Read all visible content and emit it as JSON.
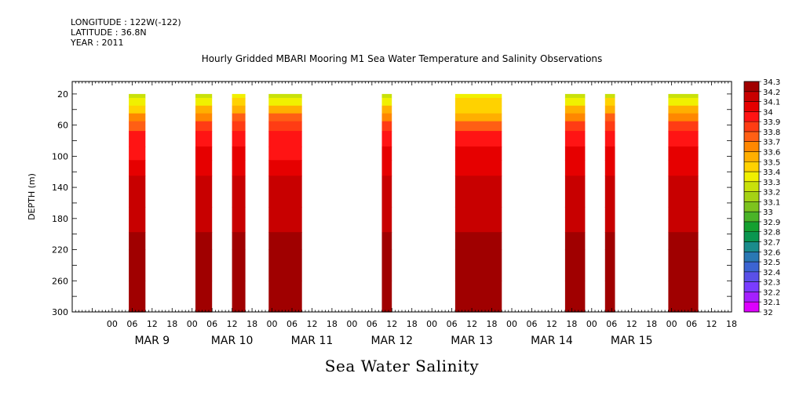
{
  "header": {
    "longitude": "LONGITUDE : 122W(-122)",
    "latitude": "LATITUDE : 36.8N",
    "year": "YEAR : 2011",
    "title": "Hourly Gridded MBARI Mooring M1 Sea Water Temperature and Salinity Observations"
  },
  "footer": {
    "subtitle": "Sea Water Salinity"
  },
  "colors": {
    "ramp": [
      "#dd00ff",
      "#a520ff",
      "#7a3cff",
      "#5a50e8",
      "#3c64d2",
      "#2a78b4",
      "#1a8c8c",
      "#0a9650",
      "#14a030",
      "#4ab428",
      "#7dc31e",
      "#a5d214",
      "#c8e10a",
      "#f0f000",
      "#ffd200",
      "#ffaf00",
      "#ff8700",
      "#ff5f14",
      "#ff3c14",
      "#ff1414",
      "#e60000",
      "#c80000",
      "#a00000"
    ]
  },
  "chart_data": {
    "type": "heatmap",
    "ylabel": "DEPTH (m)",
    "xlabel": "",
    "ylim": [
      300,
      0
    ],
    "y_ticks": [
      20,
      60,
      100,
      140,
      180,
      220,
      260,
      300
    ],
    "x_range_hours": [
      -12,
      186
    ],
    "x_tick_hour_labels": [
      "00",
      "06",
      "12",
      "18"
    ],
    "day_labels": [
      "MAR  9",
      "MAR 10",
      "MAR 11",
      "MAR 12",
      "MAR 13",
      "MAR 14",
      "MAR 15"
    ],
    "colorbar_labels": [
      "32",
      "32.1",
      "32.2",
      "32.3",
      "32.4",
      "32.5",
      "32.6",
      "32.7",
      "32.8",
      "32.9",
      "33",
      "33.1",
      "33.2",
      "33.3",
      "33.4",
      "33.5",
      "33.6",
      "33.7",
      "33.8",
      "33.9",
      "34",
      "34.1",
      "34.2",
      "34.3"
    ],
    "depth_levels": [
      20,
      30,
      40,
      50,
      60,
      75,
      100,
      110,
      140,
      190,
      205,
      235,
      285,
      300
    ],
    "segments": [
      {
        "start": 5,
        "end": 10,
        "profile": [
          33.25,
          33.3,
          33.45,
          33.6,
          33.75,
          33.9,
          33.95,
          34.05,
          34.15,
          34.15,
          34.2,
          34.25,
          34.2,
          34.2
        ]
      },
      {
        "start": 25,
        "end": 30,
        "profile": [
          33.25,
          33.35,
          33.5,
          33.65,
          33.8,
          33.95,
          34.0,
          34.05,
          34.15,
          34.15,
          34.2,
          34.25,
          34.2,
          34.2
        ]
      },
      {
        "start": 36,
        "end": 40,
        "profile": [
          33.3,
          33.4,
          33.55,
          33.7,
          33.8,
          33.9,
          34.0,
          34.05,
          34.1,
          34.15,
          34.2,
          34.25,
          34.2,
          34.2
        ]
      },
      {
        "start": 47,
        "end": 57,
        "profile": [
          33.2,
          33.35,
          33.55,
          33.7,
          33.8,
          33.9,
          33.95,
          34.0,
          34.1,
          34.15,
          34.2,
          34.25,
          34.25,
          34.25
        ]
      },
      {
        "start": 81,
        "end": 84,
        "profile": [
          33.2,
          33.3,
          33.5,
          33.65,
          33.8,
          33.9,
          34.0,
          34.05,
          34.1,
          34.15,
          34.2,
          34.2,
          34.25,
          34.2
        ]
      },
      {
        "start": 103,
        "end": 117,
        "profile": [
          33.3,
          33.4,
          33.45,
          33.55,
          33.75,
          33.95,
          34.0,
          34.05,
          34.15,
          34.15,
          34.2,
          34.25,
          34.25,
          34.25
        ]
      },
      {
        "start": 136,
        "end": 142,
        "profile": [
          33.25,
          33.35,
          33.5,
          33.65,
          33.8,
          33.95,
          34.0,
          34.0,
          34.15,
          34.15,
          34.2,
          34.25,
          34.2,
          34.2
        ]
      },
      {
        "start": 148,
        "end": 151,
        "profile": [
          33.25,
          33.4,
          33.55,
          33.7,
          33.8,
          33.95,
          34.0,
          34.05,
          34.15,
          34.15,
          34.2,
          34.25,
          34.2,
          34.2
        ]
      },
      {
        "start": 167,
        "end": 176,
        "profile": [
          33.25,
          33.35,
          33.5,
          33.65,
          33.8,
          33.9,
          34.0,
          34.05,
          34.15,
          34.15,
          34.2,
          34.25,
          34.25,
          34.2
        ]
      }
    ]
  }
}
